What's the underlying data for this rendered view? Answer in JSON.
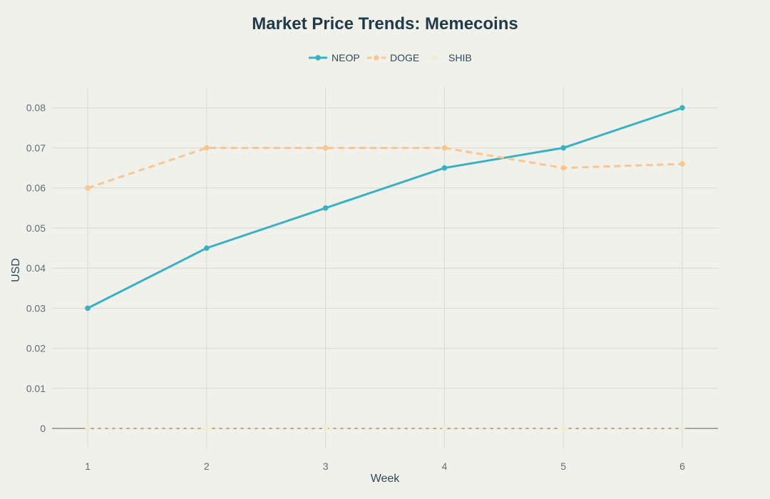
{
  "chart_data": {
    "type": "line",
    "title": "Market Price Trends: Memecoins",
    "xlabel": "Week",
    "ylabel": "USD",
    "x": [
      1,
      2,
      3,
      4,
      5,
      6
    ],
    "xlim": [
      0.7,
      6.3
    ],
    "ylim": [
      -0.0048,
      0.0852
    ],
    "yticks": [
      0,
      0.01,
      0.02,
      0.03,
      0.04,
      0.05,
      0.06,
      0.07,
      0.08
    ],
    "ytick_labels": [
      "0",
      "0.01",
      "0.02",
      "0.03",
      "0.04",
      "0.05",
      "0.06",
      "0.07",
      "0.08"
    ],
    "xtick_labels": [
      "1",
      "2",
      "3",
      "4",
      "5",
      "6"
    ],
    "grid": true,
    "legend_position": "top-center",
    "series": [
      {
        "name": "NEOP",
        "values": [
          0.03,
          0.045,
          0.055,
          0.065,
          0.07,
          0.08
        ],
        "color": "#38b2c3",
        "dash": "solid"
      },
      {
        "name": "DOGE",
        "values": [
          0.06,
          0.07,
          0.07,
          0.07,
          0.065,
          0.066
        ],
        "color": "#fbc58f",
        "dash": "dashed"
      },
      {
        "name": "SHIB",
        "values": [
          8e-06,
          8e-06,
          8e-06,
          8e-06,
          8e-06,
          8e-06
        ],
        "color": "#f2ebd3",
        "dash": "dotted"
      }
    ]
  }
}
